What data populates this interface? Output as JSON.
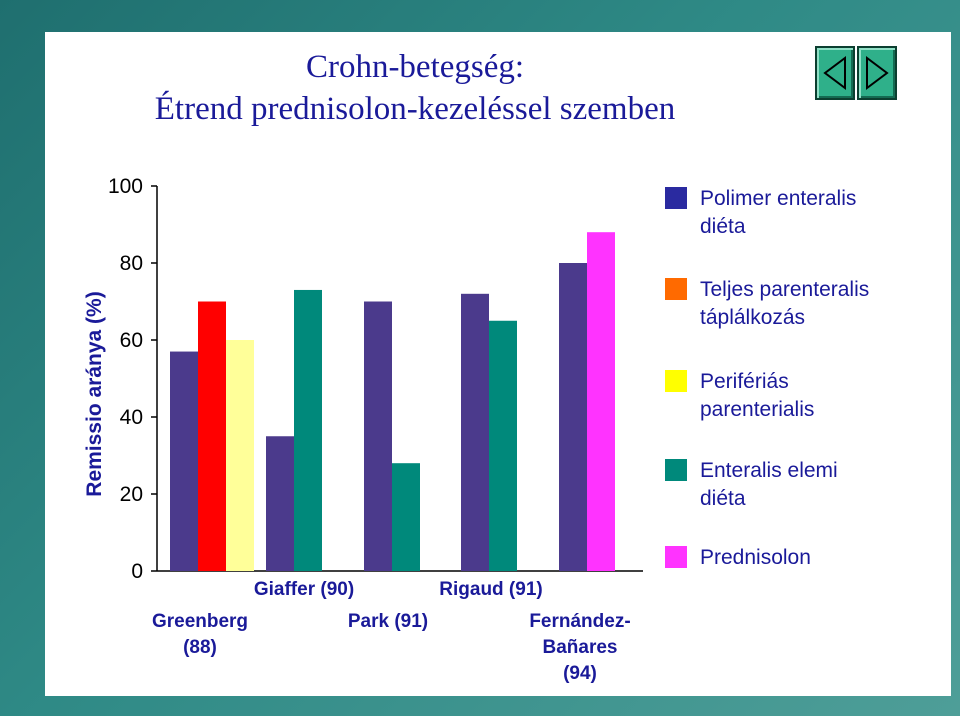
{
  "title": {
    "line1": "Crohn-betegség:",
    "line2": "Étrend prednisolon-kezeléssel szemben"
  },
  "nav": {
    "prev_icon": "triangle-left-icon",
    "next_icon": "triangle-right-icon"
  },
  "chart_data": {
    "type": "bar",
    "ylabel": "Remissio aránya (%)",
    "xlabel": "",
    "ylim": [
      0,
      100
    ],
    "yticks": [
      0,
      20,
      40,
      60,
      80,
      100
    ],
    "grid": false,
    "legend_position": "right",
    "categories": [
      "Greenberg (88)",
      "Giaffer (90)",
      "Park (91)",
      "Rigaud (91)",
      "Fernández-Bañares (94)"
    ],
    "category_labels": [
      [
        "Greenberg",
        "(88)"
      ],
      [
        "Giaffer (90)"
      ],
      [
        "Park (91)"
      ],
      [
        "Rigaud (91)"
      ],
      [
        "Fernández-",
        "Bañares",
        "(94)"
      ]
    ],
    "series": [
      {
        "name": "Polimer enteralis diéta",
        "name_lines": [
          "Polimer enteralis",
          "diéta"
        ],
        "color": "#4b3a8c",
        "values": [
          57,
          35,
          70,
          72,
          80
        ]
      },
      {
        "name": "Teljes parenteralis táplálkozás",
        "name_lines": [
          "Teljes parenteralis",
          "táplálkozás"
        ],
        "color": "#ff0000",
        "values": [
          70,
          null,
          null,
          null,
          null
        ]
      },
      {
        "name": "Perifériás parenterialis",
        "name_lines": [
          "Perifériás",
          "parenterialis"
        ],
        "color": "#ffff99",
        "values": [
          60,
          null,
          null,
          null,
          null
        ]
      },
      {
        "name": "Enteralis elemi diéta",
        "name_lines": [
          "Enteralis elemi",
          "diéta"
        ],
        "color": "#00897b",
        "values": [
          null,
          73,
          28,
          65,
          null
        ]
      },
      {
        "name": "Prednisolon",
        "name_lines": [
          "Prednisolon"
        ],
        "color": "#ff33ff",
        "values": [
          null,
          null,
          null,
          null,
          88
        ]
      }
    ],
    "legend_swatch_colors": [
      "#2a2aa0",
      "#ff6a00",
      "#ffff00",
      "#00897b",
      "#ff33ff"
    ]
  }
}
